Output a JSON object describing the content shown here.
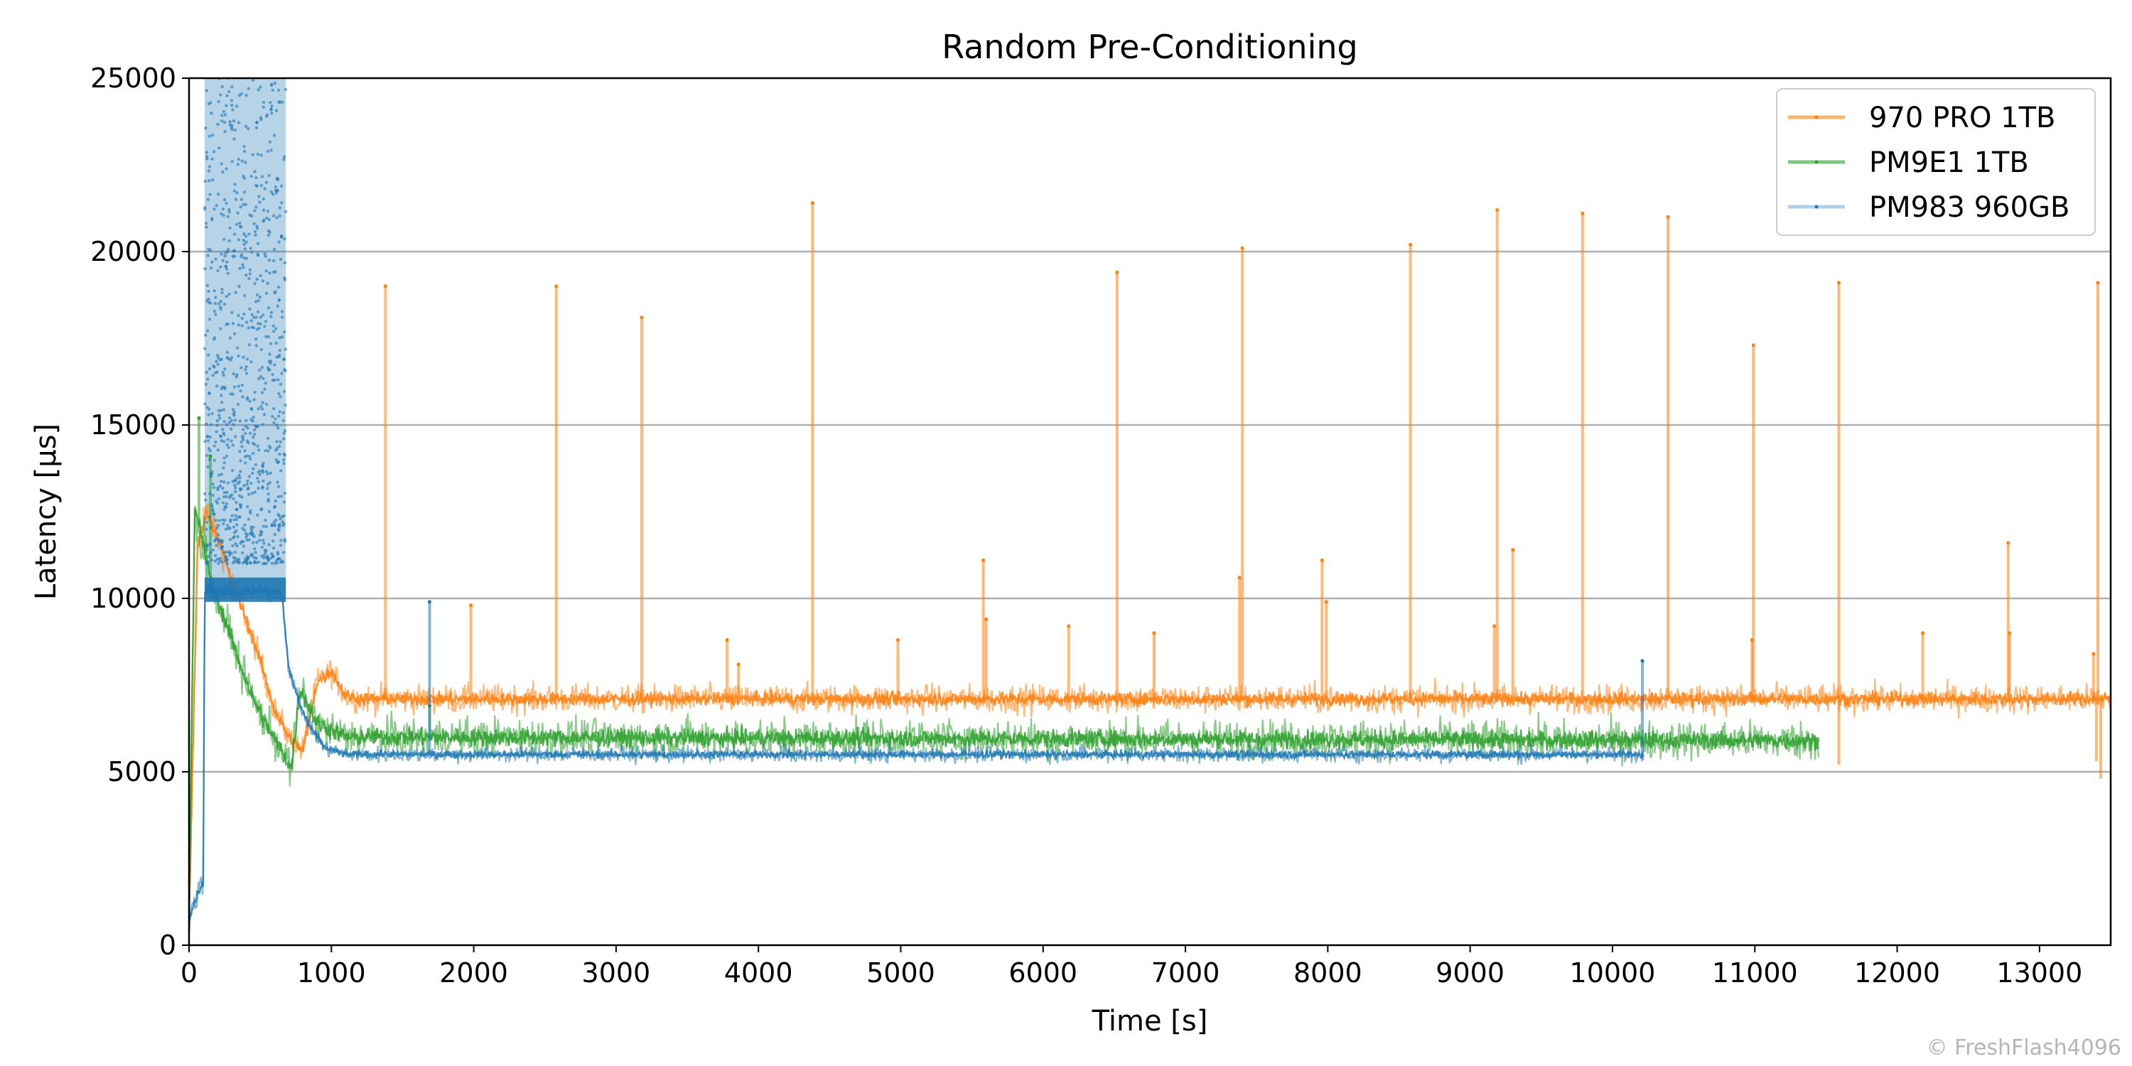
{
  "chart_data": {
    "type": "scatter",
    "title": "Random Pre-Conditioning",
    "xlabel": "Time [s]",
    "ylabel": "Latency [µs]",
    "xlim": [
      0,
      13500
    ],
    "ylim": [
      0,
      25000
    ],
    "xticks": [
      0,
      1000,
      2000,
      3000,
      4000,
      5000,
      6000,
      7000,
      8000,
      9000,
      10000,
      11000,
      12000,
      13000
    ],
    "yticks": [
      0,
      5000,
      10000,
      15000,
      20000,
      25000
    ],
    "grid": "horizontal",
    "legend_position": "top-right",
    "series": [
      {
        "name": "970 PRO 1TB",
        "color": "#ff7f0e",
        "end_time": 13500,
        "profile": [
          [
            0,
            600
          ],
          [
            60,
            11500
          ],
          [
            120,
            12500
          ],
          [
            200,
            11800
          ],
          [
            300,
            10500
          ],
          [
            400,
            9400
          ],
          [
            500,
            8200
          ],
          [
            600,
            6800
          ],
          [
            700,
            6000
          ],
          [
            800,
            5600
          ],
          [
            900,
            7600
          ],
          [
            1000,
            7900
          ],
          [
            1100,
            7200
          ],
          [
            1200,
            7100
          ],
          [
            13500,
            7100
          ]
        ],
        "spread": 400,
        "spikes": [
          [
            1380,
            19000
          ],
          [
            1980,
            9800
          ],
          [
            2580,
            19000
          ],
          [
            3180,
            18100
          ],
          [
            3780,
            8800
          ],
          [
            3860,
            8100
          ],
          [
            4380,
            21400
          ],
          [
            4980,
            8800
          ],
          [
            5580,
            11100
          ],
          [
            5600,
            9400
          ],
          [
            6180,
            9200
          ],
          [
            6520,
            19400
          ],
          [
            6780,
            9000
          ],
          [
            7380,
            10600
          ],
          [
            7400,
            20100
          ],
          [
            7960,
            11100
          ],
          [
            7990,
            9900
          ],
          [
            8580,
            20200
          ],
          [
            9170,
            9200
          ],
          [
            9190,
            21200
          ],
          [
            9300,
            11400
          ],
          [
            9790,
            21100
          ],
          [
            10390,
            21000
          ],
          [
            10980,
            8800
          ],
          [
            10990,
            17300
          ],
          [
            11590,
            19100
          ],
          [
            12180,
            9000
          ],
          [
            12780,
            11600
          ],
          [
            12790,
            9000
          ],
          [
            13380,
            8400
          ],
          [
            13410,
            19100
          ]
        ],
        "dips": [
          [
            11590,
            5200
          ],
          [
            13430,
            4800
          ],
          [
            13400,
            5300
          ]
        ]
      },
      {
        "name": "PM9E1 1TB",
        "color": "#2ca02c",
        "end_time": 11450,
        "profile": [
          [
            0,
            700
          ],
          [
            40,
            12500
          ],
          [
            80,
            12000
          ],
          [
            150,
            10500
          ],
          [
            250,
            9400
          ],
          [
            350,
            8200
          ],
          [
            450,
            7100
          ],
          [
            550,
            6300
          ],
          [
            650,
            5600
          ],
          [
            720,
            5100
          ],
          [
            780,
            7400
          ],
          [
            900,
            6400
          ],
          [
            1100,
            6000
          ],
          [
            11450,
            5900
          ]
        ],
        "spread": 550,
        "spikes": [
          [
            70,
            15200
          ],
          [
            150,
            14100
          ],
          [
            1690,
            6900
          ]
        ],
        "dips": []
      },
      {
        "name": "PM983 960GB",
        "color": "#1f77b4",
        "end_time": 10220,
        "profile": [
          [
            0,
            800
          ],
          [
            60,
            1500
          ],
          [
            100,
            1800
          ],
          [
            110,
            10200
          ],
          [
            650,
            10200
          ],
          [
            700,
            8000
          ],
          [
            780,
            6900
          ],
          [
            850,
            6300
          ],
          [
            950,
            5700
          ],
          [
            1100,
            5500
          ],
          [
            10220,
            5500
          ]
        ],
        "spread": 220,
        "spikes": [
          [
            1690,
            9900
          ],
          [
            10210,
            8200
          ]
        ],
        "dips": [],
        "scatter_cloud": {
          "x_range": [
            110,
            680
          ],
          "y_range": [
            11000,
            25000
          ]
        },
        "shaded_region": {
          "x_range": [
            110,
            680
          ],
          "y_range": [
            10000,
            25000
          ]
        }
      }
    ]
  },
  "watermark": "© FreshFlash4096"
}
